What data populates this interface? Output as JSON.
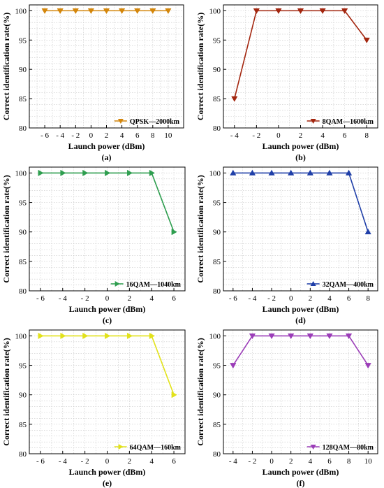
{
  "chart_data": [
    {
      "type": "line",
      "caption": "(a)",
      "xlabel": "Launch power (dBm)",
      "ylabel": "Correct identification rate(%)",
      "xlim": [
        -8,
        12
      ],
      "ylim": [
        80,
        101
      ],
      "xticks": [
        -6,
        -4,
        -2,
        0,
        2,
        4,
        6,
        8,
        10
      ],
      "xtick_labels": [
        "- 6",
        "- 4",
        "- 2",
        "0",
        "2",
        "4",
        "6",
        "8",
        "10"
      ],
      "yticks": [
        80,
        85,
        90,
        95,
        100
      ],
      "grid": true,
      "legend_position": "bottom-right",
      "series": [
        {
          "name": "QPSK—2000km",
          "color": "#D4860B",
          "marker": "triangle-down",
          "x": [
            -6,
            -4,
            -2,
            0,
            2,
            4,
            6,
            8,
            10
          ],
          "y": [
            100,
            100,
            100,
            100,
            100,
            100,
            100,
            100,
            100
          ]
        }
      ]
    },
    {
      "type": "line",
      "caption": "(b)",
      "xlabel": "Launch power (dBm)",
      "ylabel": "Correct identification rate(%)",
      "xlim": [
        -5,
        9
      ],
      "ylim": [
        80,
        101
      ],
      "xticks": [
        -4,
        -2,
        0,
        2,
        4,
        6,
        8
      ],
      "xtick_labels": [
        "- 4",
        "- 2",
        "0",
        "2",
        "4",
        "6",
        "8"
      ],
      "yticks": [
        80,
        85,
        90,
        95,
        100
      ],
      "grid": true,
      "legend_position": "bottom-right",
      "series": [
        {
          "name": "8QAM—1600km",
          "color": "#A3260F",
          "marker": "triangle-down",
          "x": [
            -4,
            -2,
            0,
            2,
            4,
            6,
            8
          ],
          "y": [
            85,
            100,
            100,
            100,
            100,
            100,
            95
          ]
        }
      ]
    },
    {
      "type": "line",
      "caption": "(c)",
      "xlabel": "Launch power (dBm)",
      "ylabel": "Correct identification rate(%)",
      "xlim": [
        -7,
        7
      ],
      "ylim": [
        80,
        101
      ],
      "xticks": [
        -6,
        -4,
        -2,
        0,
        2,
        4,
        6
      ],
      "xtick_labels": [
        "- 6",
        "- 4",
        "- 2",
        "0",
        "2",
        "4",
        "6"
      ],
      "yticks": [
        80,
        85,
        90,
        95,
        100
      ],
      "grid": true,
      "legend_position": "bottom-right",
      "series": [
        {
          "name": "16QAM—1040km",
          "color": "#2E9E4F",
          "marker": "triangle-right",
          "x": [
            -6,
            -4,
            -2,
            0,
            2,
            4,
            6
          ],
          "y": [
            100,
            100,
            100,
            100,
            100,
            100,
            90
          ]
        }
      ]
    },
    {
      "type": "line",
      "caption": "(d)",
      "xlabel": "Launch power (dBm)",
      "ylabel": "Correct identification rate(%)",
      "xlim": [
        -7,
        9
      ],
      "ylim": [
        80,
        101
      ],
      "xticks": [
        -6,
        -4,
        -2,
        0,
        2,
        4,
        6,
        8
      ],
      "xtick_labels": [
        "- 6",
        "- 4",
        "- 2",
        "0",
        "2",
        "4",
        "6",
        "8"
      ],
      "yticks": [
        80,
        85,
        90,
        95,
        100
      ],
      "grid": true,
      "legend_position": "bottom-right",
      "series": [
        {
          "name": "32QAM—400km",
          "color": "#1F3FA8",
          "marker": "triangle-up",
          "x": [
            -6,
            -4,
            -2,
            0,
            2,
            4,
            6,
            8
          ],
          "y": [
            100,
            100,
            100,
            100,
            100,
            100,
            100,
            90
          ]
        }
      ]
    },
    {
      "type": "line",
      "caption": "(e)",
      "xlabel": "Launch power (dBm)",
      "ylabel": "Correct identification rate(%)",
      "xlim": [
        -7,
        7
      ],
      "ylim": [
        80,
        101
      ],
      "xticks": [
        -6,
        -4,
        -2,
        0,
        2,
        4,
        6
      ],
      "xtick_labels": [
        "- 6",
        "- 4",
        "- 2",
        "0",
        "2",
        "4",
        "6"
      ],
      "yticks": [
        80,
        85,
        90,
        95,
        100
      ],
      "grid": true,
      "legend_position": "bottom-right",
      "series": [
        {
          "name": "64QAM—160km",
          "color": "#E2E21A",
          "marker": "triangle-right",
          "x": [
            -6,
            -4,
            -2,
            0,
            2,
            4,
            6
          ],
          "y": [
            100,
            100,
            100,
            100,
            100,
            100,
            90
          ]
        }
      ]
    },
    {
      "type": "line",
      "caption": "(f)",
      "xlabel": "Launch power (dBm)",
      "ylabel": "Correct identification rate(%)",
      "xlim": [
        -5,
        11
      ],
      "ylim": [
        80,
        101
      ],
      "xticks": [
        -4,
        -2,
        0,
        2,
        4,
        6,
        8,
        10
      ],
      "xtick_labels": [
        "- 4",
        "- 2",
        "0",
        "2",
        "4",
        "6",
        "8",
        "10"
      ],
      "yticks": [
        80,
        85,
        90,
        95,
        100
      ],
      "grid": true,
      "legend_position": "bottom-right",
      "series": [
        {
          "name": "128QAM—80km",
          "color": "#9B3DB8",
          "marker": "triangle-down",
          "x": [
            -4,
            -2,
            0,
            2,
            4,
            6,
            8,
            10
          ],
          "y": [
            95,
            100,
            100,
            100,
            100,
            100,
            100,
            95
          ]
        }
      ]
    }
  ]
}
